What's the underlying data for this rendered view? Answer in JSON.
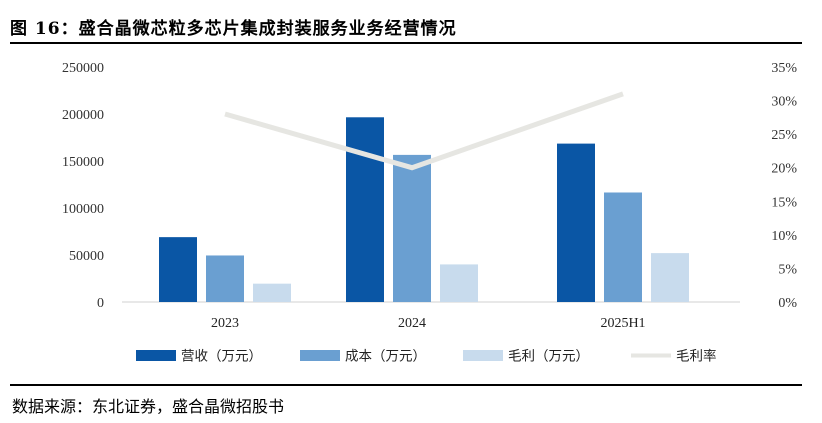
{
  "figure": {
    "title": "图 16：盛合晶微芯粒多芯片集成封装服务业务经营情况",
    "source": "数据来源：东北证券，盛合晶微招股书"
  },
  "chart_data": {
    "type": "bar",
    "categories": [
      "2023",
      "2024",
      "2025H1"
    ],
    "series": [
      {
        "name": "营收（万元）",
        "kind": "bar",
        "axis": "left",
        "color": "#0a56a5",
        "values": [
          69000,
          196500,
          168500
        ]
      },
      {
        "name": "成本（万元）",
        "kind": "bar",
        "axis": "left",
        "color": "#6a9fd1",
        "values": [
          49500,
          156500,
          116500
        ]
      },
      {
        "name": "毛利（万元）",
        "kind": "bar",
        "axis": "left",
        "color": "#c8dbed",
        "values": [
          19500,
          40000,
          52000
        ]
      },
      {
        "name": "毛利率",
        "kind": "line",
        "axis": "right",
        "color": "#e6e6e2",
        "values": [
          0.28,
          0.2,
          0.31
        ]
      }
    ],
    "ylim_left": [
      0,
      250000
    ],
    "yticks_left": [
      "0",
      "50000",
      "100000",
      "150000",
      "200000",
      "250000"
    ],
    "ylim_right": [
      0,
      0.35
    ],
    "yticks_right": [
      "0%",
      "5%",
      "10%",
      "15%",
      "20%",
      "25%",
      "30%",
      "35%"
    ],
    "grid": false,
    "legend_position": "bottom"
  }
}
